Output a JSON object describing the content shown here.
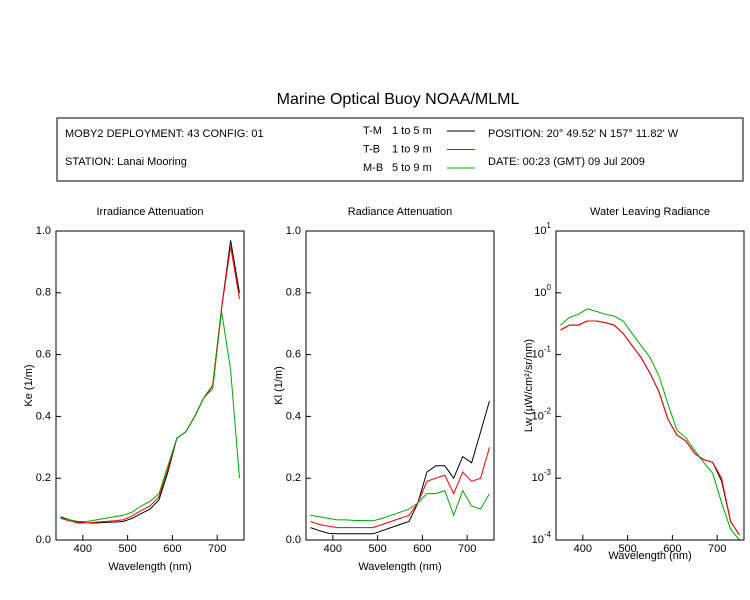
{
  "title": "Marine Optical Buoy NOAA/MLML",
  "info": {
    "deployment": "MOBY2 DEPLOYMENT: 43 CONFIG: 01",
    "station": "STATION: Lanai Mooring",
    "position": "POSITION: 20° 49.52' N   157° 11.82' W",
    "date": "DATE: 00:23 (GMT) 09 Jul 2009"
  },
  "legend": [
    {
      "name": "T-M",
      "depth": "1 to 5  m",
      "color": "#000000"
    },
    {
      "name": "T-B",
      "depth": "1 to 9  m",
      "color": "#ff0000"
    },
    {
      "name": "M-B",
      "depth": "5 to 9  m",
      "color": "#00aa00"
    }
  ],
  "chart_data": [
    {
      "type": "line",
      "title": "Irradiance Attenuation",
      "xlabel": "Wavelength (nm)",
      "ylabel": "Ke  (1/m)",
      "x": [
        350,
        370,
        390,
        410,
        430,
        450,
        470,
        490,
        510,
        530,
        550,
        570,
        590,
        610,
        630,
        650,
        670,
        690,
        710,
        730,
        750
      ],
      "xlim": [
        340,
        760
      ],
      "xticks": [
        400,
        500,
        600,
        700
      ],
      "ylim": [
        0,
        1
      ],
      "yticks": [
        {
          "value": 0,
          "label": "0.0"
        },
        0.2,
        0.4,
        0.6,
        0.8,
        {
          "value": 1,
          "label": "1.0"
        }
      ],
      "log": false,
      "series": [
        {
          "color": "#000000",
          "values": [
            0.075,
            0.065,
            0.058,
            0.055,
            0.055,
            0.057,
            0.058,
            0.06,
            0.07,
            0.085,
            0.1,
            0.13,
            0.22,
            0.33,
            0.35,
            0.4,
            0.46,
            0.5,
            0.75,
            0.97,
            0.8
          ]
        },
        {
          "color": "#ff0000",
          "values": [
            0.07,
            0.062,
            0.055,
            0.055,
            0.058,
            0.06,
            0.062,
            0.065,
            0.078,
            0.095,
            0.11,
            0.14,
            0.23,
            0.33,
            0.35,
            0.4,
            0.46,
            0.5,
            0.75,
            0.95,
            0.78
          ]
        },
        {
          "color": "#00aa00",
          "values": [
            0.07,
            0.065,
            0.06,
            0.06,
            0.065,
            0.07,
            0.075,
            0.08,
            0.09,
            0.11,
            0.125,
            0.15,
            0.24,
            0.33,
            0.35,
            0.4,
            0.46,
            0.49,
            0.74,
            0.55,
            0.2
          ]
        }
      ]
    },
    {
      "type": "line",
      "title": "Radiance Attenuation",
      "xlabel": "Wavelength (nm)",
      "ylabel": "Kl  (1/m)",
      "x": [
        350,
        370,
        390,
        410,
        430,
        450,
        470,
        490,
        510,
        530,
        550,
        570,
        590,
        610,
        630,
        650,
        670,
        690,
        710,
        730,
        750
      ],
      "xlim": [
        340,
        760
      ],
      "xticks": [
        400,
        500,
        600,
        700
      ],
      "ylim": [
        0,
        1
      ],
      "yticks": [
        {
          "value": 0,
          "label": "0.0"
        },
        0.2,
        0.4,
        0.6,
        0.8,
        {
          "value": 1,
          "label": "1.0"
        }
      ],
      "log": false,
      "series": [
        {
          "color": "#000000",
          "values": [
            0.04,
            0.03,
            0.022,
            0.02,
            0.02,
            0.02,
            0.02,
            0.02,
            0.03,
            0.04,
            0.05,
            0.06,
            0.12,
            0.22,
            0.24,
            0.24,
            0.2,
            0.27,
            0.25,
            0.35,
            0.45
          ]
        },
        {
          "color": "#ff0000",
          "values": [
            0.06,
            0.05,
            0.045,
            0.04,
            0.04,
            0.04,
            0.04,
            0.04,
            0.05,
            0.06,
            0.07,
            0.08,
            0.12,
            0.19,
            0.2,
            0.21,
            0.15,
            0.22,
            0.19,
            0.2,
            0.3
          ]
        },
        {
          "color": "#00aa00",
          "values": [
            0.08,
            0.075,
            0.07,
            0.065,
            0.065,
            0.063,
            0.063,
            0.062,
            0.07,
            0.08,
            0.09,
            0.1,
            0.12,
            0.15,
            0.15,
            0.16,
            0.08,
            0.16,
            0.11,
            0.1,
            0.15
          ]
        }
      ]
    },
    {
      "type": "line",
      "title": "Water Leaving Radiance",
      "xlabel": "Wavelength (nm)",
      "ylabel": "Lw  (µW/cm²/sr/nm)",
      "x": [
        350,
        370,
        390,
        410,
        430,
        450,
        470,
        490,
        510,
        530,
        550,
        570,
        590,
        610,
        630,
        650,
        670,
        690,
        710,
        730,
        750
      ],
      "xlim": [
        340,
        760
      ],
      "xticks": [
        400,
        500,
        600,
        700
      ],
      "ylim": [
        0.0001,
        10
      ],
      "log": true,
      "yticks": [
        {
          "value": 10,
          "label": "10",
          "exponent": "1"
        },
        {
          "value": 1,
          "label": "10",
          "exponent": "0"
        },
        {
          "value": 0.1,
          "label": "10",
          "exponent": "-1"
        },
        {
          "value": 0.01,
          "label": "10",
          "exponent": "-2"
        },
        {
          "value": 0.001,
          "label": "10",
          "exponent": "-3"
        },
        {
          "value": 0.0001,
          "label": "10",
          "exponent": "-4"
        }
      ],
      "series": [
        {
          "color": "#000000",
          "values": [
            0.25,
            0.3,
            0.3,
            0.35,
            0.35,
            0.33,
            0.3,
            0.22,
            0.14,
            0.09,
            0.05,
            0.025,
            0.009,
            0.005,
            0.004,
            0.0025,
            0.002,
            0.0018,
            0.0009,
            0.0002,
            0.00012
          ]
        },
        {
          "color": "#ff0000",
          "values": [
            0.25,
            0.3,
            0.3,
            0.35,
            0.35,
            0.33,
            0.3,
            0.22,
            0.14,
            0.09,
            0.05,
            0.025,
            0.009,
            0.005,
            0.004,
            0.0025,
            0.002,
            0.0018,
            0.001,
            0.0002,
            0.00012
          ]
        },
        {
          "color": "#00aa00",
          "values": [
            0.3,
            0.4,
            0.45,
            0.55,
            0.5,
            0.45,
            0.42,
            0.35,
            0.22,
            0.14,
            0.09,
            0.045,
            0.016,
            0.006,
            0.0045,
            0.0028,
            0.0018,
            0.0012,
            0.0004,
            0.00015,
            0.0001
          ]
        }
      ]
    }
  ]
}
